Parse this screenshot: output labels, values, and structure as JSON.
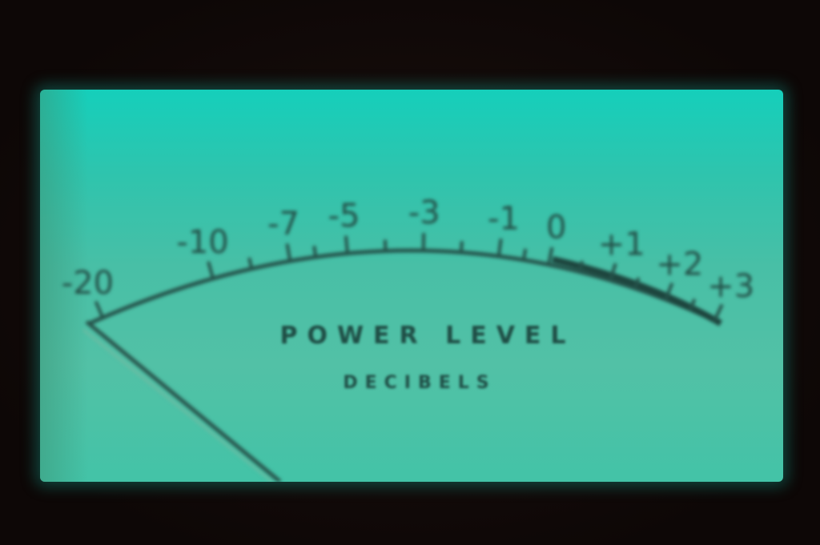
{
  "meter": {
    "title": "POWER LEVEL",
    "subtitle": "DECIBELS",
    "scale_labels": [
      "-20",
      "-10",
      "-7",
      "-5",
      "-3",
      "-1",
      "0",
      "+1",
      "+2",
      "+3"
    ],
    "needle_reading": "-20"
  },
  "colors": {
    "face_top": "#15cfbb",
    "face_bottom": "#43c3a7",
    "ink": "#1f4d45",
    "surround": "#120b0a"
  }
}
